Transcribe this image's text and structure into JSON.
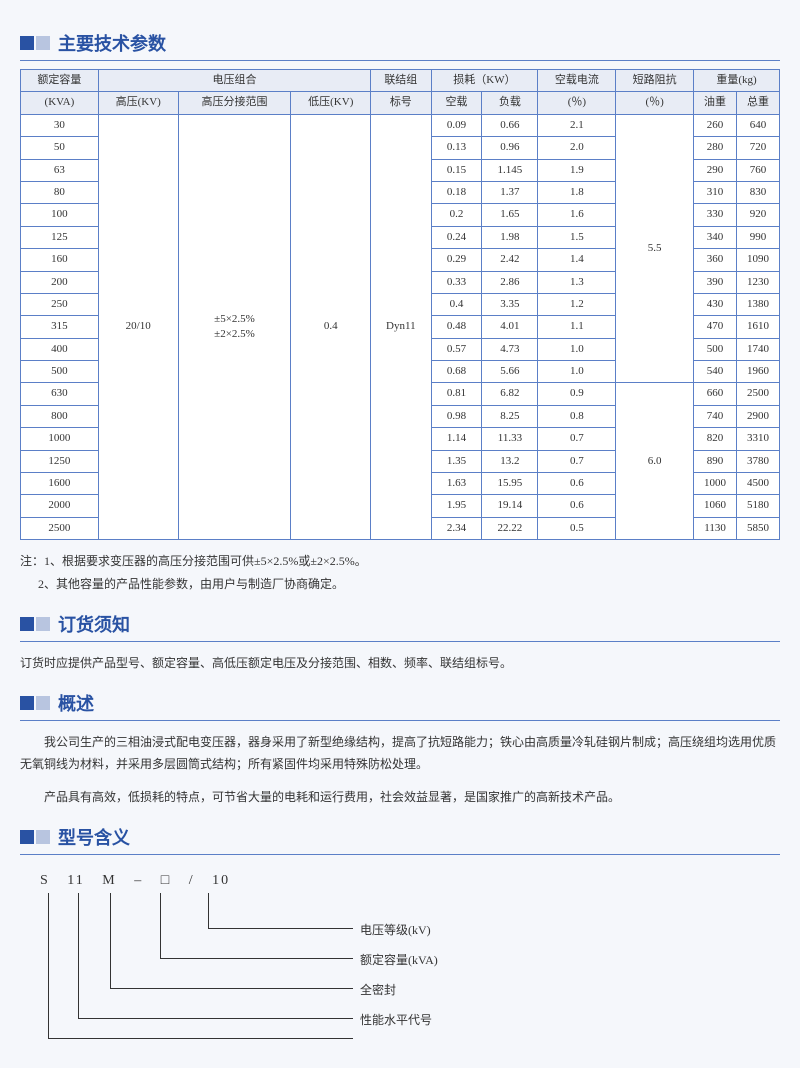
{
  "sections": {
    "specs": "主要技术参数",
    "order": "订货须知",
    "overview": "概述",
    "model": "型号含义"
  },
  "table": {
    "header1": {
      "capacity": "额定容量",
      "voltage": "电压组合",
      "group": "联结组",
      "loss": "损耗（KW）",
      "noload_i": "空载电流",
      "impedance": "短路阻抗",
      "weight": "重量(kg)"
    },
    "header2": {
      "kva": "(KVA)",
      "hv": "高压(KV)",
      "tap": "高压分接范围",
      "lv": "低压(KV)",
      "mark": "标号",
      "noload": "空载",
      "load": "负载",
      "pct1": "(％)",
      "pct2": "(％)",
      "oil": "油重",
      "total": "总重"
    },
    "merged": {
      "hv": "20/10",
      "tap": "±5×2.5%\n±2×2.5%",
      "lv": "0.4",
      "mark": "Dyn11",
      "imp1": "5.5",
      "imp2": "6.0"
    },
    "rows": [
      {
        "kva": "30",
        "nl": "0.09",
        "ld": "0.66",
        "pct": "2.1",
        "oil": "260",
        "tot": "640"
      },
      {
        "kva": "50",
        "nl": "0.13",
        "ld": "0.96",
        "pct": "2.0",
        "oil": "280",
        "tot": "720"
      },
      {
        "kva": "63",
        "nl": "0.15",
        "ld": "1.145",
        "pct": "1.9",
        "oil": "290",
        "tot": "760"
      },
      {
        "kva": "80",
        "nl": "0.18",
        "ld": "1.37",
        "pct": "1.8",
        "oil": "310",
        "tot": "830"
      },
      {
        "kva": "100",
        "nl": "0.2",
        "ld": "1.65",
        "pct": "1.6",
        "oil": "330",
        "tot": "920"
      },
      {
        "kva": "125",
        "nl": "0.24",
        "ld": "1.98",
        "pct": "1.5",
        "oil": "340",
        "tot": "990"
      },
      {
        "kva": "160",
        "nl": "0.29",
        "ld": "2.42",
        "pct": "1.4",
        "oil": "360",
        "tot": "1090"
      },
      {
        "kva": "200",
        "nl": "0.33",
        "ld": "2.86",
        "pct": "1.3",
        "oil": "390",
        "tot": "1230"
      },
      {
        "kva": "250",
        "nl": "0.4",
        "ld": "3.35",
        "pct": "1.2",
        "oil": "430",
        "tot": "1380"
      },
      {
        "kva": "315",
        "nl": "0.48",
        "ld": "4.01",
        "pct": "1.1",
        "oil": "470",
        "tot": "1610"
      },
      {
        "kva": "400",
        "nl": "0.57",
        "ld": "4.73",
        "pct": "1.0",
        "oil": "500",
        "tot": "1740"
      },
      {
        "kva": "500",
        "nl": "0.68",
        "ld": "5.66",
        "pct": "1.0",
        "oil": "540",
        "tot": "1960"
      },
      {
        "kva": "630",
        "nl": "0.81",
        "ld": "6.82",
        "pct": "0.9",
        "oil": "660",
        "tot": "2500"
      },
      {
        "kva": "800",
        "nl": "0.98",
        "ld": "8.25",
        "pct": "0.8",
        "oil": "740",
        "tot": "2900"
      },
      {
        "kva": "1000",
        "nl": "1.14",
        "ld": "11.33",
        "pct": "0.7",
        "oil": "820",
        "tot": "3310"
      },
      {
        "kva": "1250",
        "nl": "1.35",
        "ld": "13.2",
        "pct": "0.7",
        "oil": "890",
        "tot": "3780"
      },
      {
        "kva": "1600",
        "nl": "1.63",
        "ld": "15.95",
        "pct": "0.6",
        "oil": "1000",
        "tot": "4500"
      },
      {
        "kva": "2000",
        "nl": "1.95",
        "ld": "19.14",
        "pct": "0.6",
        "oil": "1060",
        "tot": "5180"
      },
      {
        "kva": "2500",
        "nl": "2.34",
        "ld": "22.22",
        "pct": "0.5",
        "oil": "1130",
        "tot": "5850"
      }
    ]
  },
  "notes": {
    "prefix": "注：",
    "n1": "1、根据要求变压器的高压分接范围可供±5×2.5%或±2×2.5%。",
    "n2": "2、其他容量的产品性能参数，由用户与制造厂协商确定。"
  },
  "order_text": "订货时应提供产品型号、额定容量、高低压额定电压及分接范围、相数、频率、联结组标号。",
  "overview_p1": "我公司生产的三相油浸式配电变压器，器身采用了新型绝缘结构，提高了抗短路能力；铁心由高质量冷轧硅钢片制成；高压绕组均选用优质无氧铜线为材料，并采用多层圆筒式结构；所有紧固件均采用特殊防松处理。",
  "overview_p2": "产品具有高效，低损耗的特点，可节省大量的电耗和运行费用，社会效益显著，是国家推广的高新技术产品。",
  "model": {
    "parts": [
      "S",
      "11",
      "M",
      "–",
      "□",
      "/",
      "10"
    ],
    "labels": [
      "电压等级(kV)",
      "额定容量(kVA)",
      "全密封",
      "性能水平代号"
    ]
  }
}
